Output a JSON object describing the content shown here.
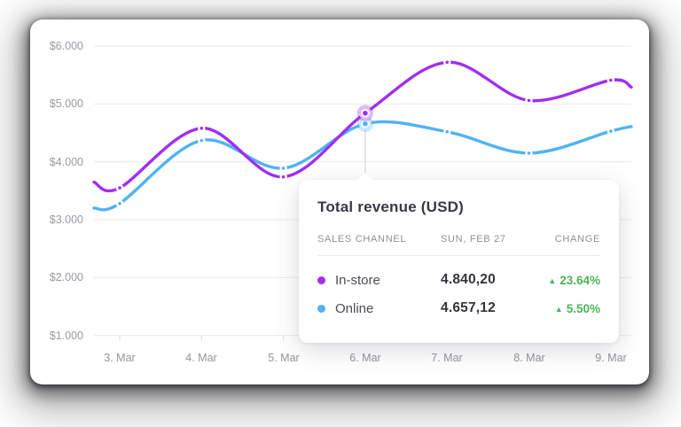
{
  "chart_data": {
    "type": "line",
    "title": "",
    "x": [
      "3. Mar",
      "4. Mar",
      "5. Mar",
      "6. Mar",
      "7. Mar",
      "8. Mar",
      "9. Mar"
    ],
    "y_ticks": [
      "$6.000",
      "$5.000",
      "$4.000",
      "$3.000",
      "$2.000",
      "$1.000"
    ],
    "y_tick_values": [
      6000,
      5000,
      4000,
      3000,
      2000,
      1000
    ],
    "ylim": [
      1000,
      6000
    ],
    "grid": true,
    "legend_position": "none",
    "highlight_index": 3,
    "series": [
      {
        "name": "In-store",
        "color": "#a02ff0",
        "edge_left": 3650,
        "values": [
          3550,
          4580,
          3740,
          4840.2,
          5720,
          5060,
          5410
        ],
        "edge_right": 5290
      },
      {
        "name": "Online",
        "color": "#4fb3f5",
        "edge_left": 3200,
        "values": [
          3280,
          4370,
          3890,
          4657.12,
          4520,
          4150,
          4530
        ],
        "edge_right": 4610
      }
    ]
  },
  "tooltip": {
    "title": "Total revenue (USD)",
    "columns": [
      "SALES CHANNEL",
      "SUN, FEB 27",
      "CHANGE"
    ],
    "rows": [
      {
        "channel": "In-store",
        "dot_color": "#a02ff0",
        "value": "4.840,20",
        "change": "23.64%",
        "direction": "up"
      },
      {
        "channel": "Online",
        "dot_color": "#4fb3f5",
        "value": "4.657,12",
        "change": "5.50%",
        "direction": "up"
      }
    ],
    "up_arrow": "▲",
    "change_color": "#4cb558"
  }
}
